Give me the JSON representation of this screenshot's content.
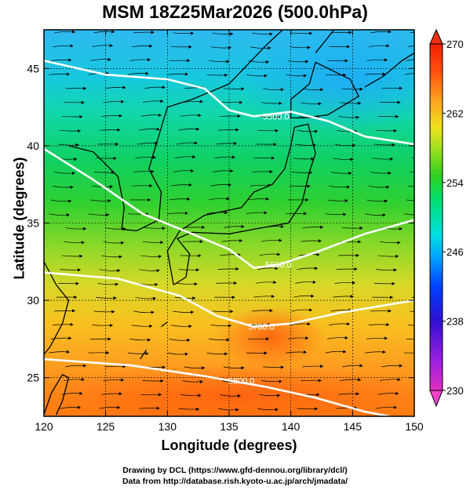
{
  "title": "MSM 18Z25Mar2026 (500.0hPa)",
  "map": {
    "x_axis": {
      "label": "Longitude (degrees)",
      "range": [
        120,
        150
      ],
      "ticks": [
        120,
        125,
        130,
        135,
        140,
        145,
        150
      ]
    },
    "y_axis": {
      "label": "Latitude  (degrees)",
      "range": [
        22.5,
        47.5
      ],
      "ticks": [
        25,
        30,
        35,
        40,
        45
      ]
    },
    "gridlines": "dotted at labeled ticks",
    "field": "temperature shading (K)",
    "arrows": "wind streamlines, generally west to east",
    "contours": [
      {
        "label": "5800.0",
        "points": [
          [
            120,
            26.2
          ],
          [
            127,
            25.8
          ],
          [
            133,
            25.1
          ],
          [
            138,
            24.4
          ],
          [
            142,
            23.7
          ],
          [
            146,
            22.8
          ],
          [
            148,
            22.5
          ]
        ],
        "label_at": [
          136,
          24.8
        ]
      },
      {
        "label": "5700.0",
        "points": [
          [
            120,
            31.8
          ],
          [
            126,
            31.4
          ],
          [
            131,
            30.3
          ],
          [
            134,
            29.0
          ],
          [
            137,
            28.3
          ],
          [
            140,
            28.5
          ],
          [
            144,
            29.2
          ],
          [
            150,
            30.0
          ]
        ],
        "label_at": [
          137.6,
          28.3
        ]
      },
      {
        "label": "5600.0",
        "points": [
          [
            120,
            39.8
          ],
          [
            124,
            37.8
          ],
          [
            128,
            35.6
          ],
          [
            132,
            34.3
          ],
          [
            135,
            33.3
          ],
          [
            137,
            32.1
          ],
          [
            139,
            32.3
          ],
          [
            142,
            33.1
          ],
          [
            146,
            34.3
          ],
          [
            150,
            35.2
          ]
        ],
        "label_at": [
          139.0,
          32.3
        ]
      },
      {
        "label": "5500.0",
        "points": [
          [
            120,
            45.5
          ],
          [
            125,
            44.6
          ],
          [
            130,
            44.3
          ],
          [
            133,
            43.7
          ],
          [
            135,
            42.3
          ],
          [
            137,
            41.9
          ],
          [
            140,
            42.2
          ],
          [
            143,
            41.6
          ],
          [
            146,
            40.6
          ],
          [
            150,
            40.1
          ]
        ],
        "label_at": [
          138.8,
          41.9
        ]
      }
    ]
  },
  "colorbar": {
    "ticks": [
      270,
      262,
      254,
      246,
      238,
      230
    ],
    "min": 230,
    "max": 270,
    "colors": [
      "#e030c0",
      "#a020e0",
      "#3010d0",
      "#0040ff",
      "#00a0ff",
      "#00e0e0",
      "#00e070",
      "#30d020",
      "#a0e020",
      "#f0e020",
      "#ffa020",
      "#ff5010",
      "#f02000"
    ]
  },
  "credits": [
    "Drawing by DCL (https://www.gfd-dennou.org/library/dcl/)",
    "Data from http://database.rish.kyoto-u.ac.jp/arch/jmadata/"
  ]
}
